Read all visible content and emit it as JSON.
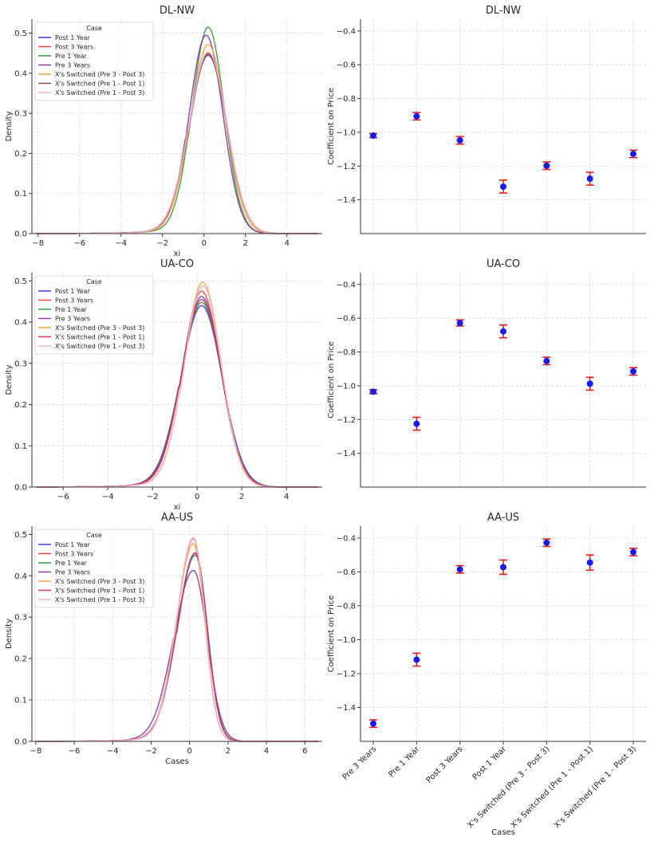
{
  "figure": {
    "cases": [
      "Pre 3 Years",
      "Pre 1 Year",
      "Post 3 Years",
      "Post 1 Year",
      "X's Switched (Pre 3 - Post 3)",
      "X's Switched (Pre 1 - Post 1)",
      "X's Switched (Pre 1 - Post 3)"
    ]
  },
  "chart_data": [
    {
      "id": "density-dl-nw",
      "type": "line",
      "title": "DL-NW",
      "xlabel": "xi",
      "ylabel": "Density",
      "xlim": [
        -8.3,
        5.7
      ],
      "ylim": [
        0,
        0.535
      ],
      "xticks": [
        -8,
        -6,
        -4,
        -2,
        0,
        2,
        4
      ],
      "yticks": [
        0.0,
        0.1,
        0.2,
        0.3,
        0.4,
        0.5
      ],
      "legend": {
        "title": "Case",
        "position": "top-left",
        "entries": [
          {
            "name": "Post 1 Year",
            "color": "#3b3bd6"
          },
          {
            "name": "Post 3 Years",
            "color": "#e8453c"
          },
          {
            "name": "Pre 1 Year",
            "color": "#3a9a3a"
          },
          {
            "name": "Pre 3 Years",
            "color": "#8a3aa6"
          },
          {
            "name": "X's Switched (Pre 3 - Post 3)",
            "color": "#f5a540"
          },
          {
            "name": "X's Switched (Pre 1 - Post 1)",
            "color": "#8b4a3a"
          },
          {
            "name": "X's Switched (Pre 1 - Post 3)",
            "color": "#f7b6d8"
          }
        ]
      },
      "series": [
        {
          "name": "Post 1 Year",
          "color": "#3b3bd6",
          "mu": 0.2,
          "peak": 0.445,
          "sigL": 0.9,
          "sigR": 0.9
        },
        {
          "name": "Post 3 Years",
          "color": "#e8453c",
          "mu": 0.2,
          "peak": 0.45,
          "sigL": 0.9,
          "sigR": 0.9
        },
        {
          "name": "Pre 1 Year",
          "color": "#3a9a3a",
          "mu": 0.2,
          "peak": 0.515,
          "sigL": 0.78,
          "sigR": 0.78
        },
        {
          "name": "Pre 3 Years",
          "color": "#8a3aa6",
          "mu": 0.1,
          "peak": 0.495,
          "sigL": 0.81,
          "sigR": 0.81
        },
        {
          "name": "X's Switched (Pre 3 - Post 3)",
          "color": "#f5a540",
          "mu": 0.2,
          "peak": 0.472,
          "sigL": 0.85,
          "sigR": 0.85
        },
        {
          "name": "X's Switched (Pre 1 - Post 1)",
          "color": "#8b4a3a",
          "mu": 0.2,
          "peak": 0.448,
          "sigL": 0.9,
          "sigR": 0.9
        },
        {
          "name": "X's Switched (Pre 1 - Post 3)",
          "color": "#f7b6d8",
          "mu": 0.2,
          "peak": 0.453,
          "sigL": 0.9,
          "sigR": 0.9
        }
      ]
    },
    {
      "id": "coef-dl-nw",
      "type": "scatter",
      "title": "DL-NW",
      "xlabel": "",
      "ylabel": "Coefficient on Price",
      "ylim": [
        -1.6,
        -0.33
      ],
      "yticks": [
        -1.4,
        -1.2,
        -1.0,
        -0.8,
        -0.6,
        -0.4
      ],
      "categories": [
        "Pre 3 Years",
        "Pre 1 Year",
        "Post 3 Years",
        "Post 1 Year",
        "X's Switched (Pre 3 - Post 3)",
        "X's Switched (Pre 1 - Post 1)",
        "X's Switched (Pre 1 - Post 3)"
      ],
      "values": [
        -1.02,
        -0.905,
        -1.048,
        -1.322,
        -1.198,
        -1.275,
        -1.128
      ],
      "errors": [
        0.012,
        0.022,
        0.022,
        0.038,
        0.022,
        0.038,
        0.022
      ],
      "point_color": "#1a1aee",
      "error_color": "#ee1a1a"
    },
    {
      "id": "density-ua-co",
      "type": "line",
      "title": "UA-CO",
      "xlabel": "xi",
      "ylabel": "Density",
      "xlim": [
        -7.4,
        5.6
      ],
      "ylim": [
        0,
        0.52
      ],
      "xticks": [
        -6,
        -4,
        -2,
        0,
        2,
        4
      ],
      "yticks": [
        0.0,
        0.1,
        0.2,
        0.3,
        0.4,
        0.5
      ],
      "legend": {
        "title": "Case",
        "position": "top-left",
        "entries": [
          {
            "name": "Post 1 Year",
            "color": "#3b3bd6"
          },
          {
            "name": "Post 3 Years",
            "color": "#e8453c"
          },
          {
            "name": "Pre 1 Year",
            "color": "#3a9a3a"
          },
          {
            "name": "Pre 3 Years",
            "color": "#8a3aa6"
          },
          {
            "name": "X's Switched (Pre 3 - Post 3)",
            "color": "#f5a540"
          },
          {
            "name": "X's Switched (Pre 1 - Post 1)",
            "color": "#c23a5a"
          },
          {
            "name": "X's Switched (Pre 1 - Post 3)",
            "color": "#f7b6d8"
          }
        ]
      },
      "series": [
        {
          "name": "Post 1 Year",
          "color": "#3b3bd6",
          "mu": 0.2,
          "peak": 0.44,
          "sigL": 0.92,
          "sigR": 0.92
        },
        {
          "name": "Post 3 Years",
          "color": "#e8453c",
          "mu": 0.2,
          "peak": 0.475,
          "sigL": 0.86,
          "sigR": 0.86
        },
        {
          "name": "Pre 1 Year",
          "color": "#3a9a3a",
          "mu": 0.2,
          "peak": 0.448,
          "sigL": 0.9,
          "sigR": 0.9
        },
        {
          "name": "Pre 3 Years",
          "color": "#8a3aa6",
          "mu": 0.2,
          "peak": 0.462,
          "sigL": 0.88,
          "sigR": 0.88
        },
        {
          "name": "X's Switched (Pre 3 - Post 3)",
          "color": "#f5a540",
          "mu": 0.25,
          "peak": 0.497,
          "sigL": 0.82,
          "sigR": 0.82
        },
        {
          "name": "X's Switched (Pre 1 - Post 1)",
          "color": "#c23a5a",
          "mu": 0.2,
          "peak": 0.455,
          "sigL": 0.89,
          "sigR": 0.89
        },
        {
          "name": "X's Switched (Pre 1 - Post 3)",
          "color": "#f7b6d8",
          "mu": 0.25,
          "peak": 0.488,
          "sigL": 0.83,
          "sigR": 0.83
        }
      ]
    },
    {
      "id": "coef-ua-co",
      "type": "scatter",
      "title": "UA-CO",
      "xlabel": "",
      "ylabel": "Coefficient on Price",
      "ylim": [
        -1.6,
        -0.33
      ],
      "yticks": [
        -1.4,
        -1.2,
        -1.0,
        -0.8,
        -0.6,
        -0.4
      ],
      "categories": [
        "Pre 3 Years",
        "Pre 1 Year",
        "Post 3 Years",
        "Post 1 Year",
        "X's Switched (Pre 3 - Post 3)",
        "X's Switched (Pre 1 - Post 1)",
        "X's Switched (Pre 1 - Post 3)"
      ],
      "values": [
        -1.035,
        -1.225,
        -0.628,
        -0.678,
        -0.853,
        -0.988,
        -0.915
      ],
      "errors": [
        0.012,
        0.038,
        0.018,
        0.038,
        0.022,
        0.038,
        0.022
      ],
      "point_color": "#1a1aee",
      "error_color": "#ee1a1a"
    },
    {
      "id": "density-aa-us",
      "type": "line",
      "title": "AA-US",
      "xlabel": "Cases",
      "ylabel": "Density",
      "xlim": [
        -8.2,
        6.9
      ],
      "ylim": [
        0,
        0.52
      ],
      "xticks": [
        -8,
        -6,
        -4,
        -2,
        0,
        2,
        4,
        6
      ],
      "yticks": [
        0.0,
        0.1,
        0.2,
        0.3,
        0.4,
        0.5
      ],
      "legend": {
        "title": "Case",
        "position": "top-left",
        "entries": [
          {
            "name": "Post 1 Year",
            "color": "#3b3bd6"
          },
          {
            "name": "Post 3 Years",
            "color": "#e8453c"
          },
          {
            "name": "Pre 1 Year",
            "color": "#3a9a3a"
          },
          {
            "name": "Pre 3 Years",
            "color": "#8a3aa6"
          },
          {
            "name": "X's Switched (Pre 3 - Post 3)",
            "color": "#f5a540"
          },
          {
            "name": "X's Switched (Pre 1 - Post 1)",
            "color": "#c23a6a"
          },
          {
            "name": "X's Switched (Pre 1 - Post 3)",
            "color": "#f7b6d8"
          }
        ]
      },
      "series": [
        {
          "name": "Post 1 Year",
          "color": "#3b3bd6",
          "mu": 0.3,
          "peak": 0.455,
          "sigL": 0.93,
          "sigR": 0.62
        },
        {
          "name": "Post 3 Years",
          "color": "#e8453c",
          "mu": 0.2,
          "peak": 0.49,
          "sigL": 0.86,
          "sigR": 0.6
        },
        {
          "name": "Pre 1 Year",
          "color": "#3a9a3a",
          "mu": 0.3,
          "peak": 0.45,
          "sigL": 0.93,
          "sigR": 0.63
        },
        {
          "name": "Pre 3 Years",
          "color": "#8a3aa6",
          "mu": 0.2,
          "peak": 0.413,
          "sigL": 1.0,
          "sigR": 0.72
        },
        {
          "name": "X's Switched (Pre 3 - Post 3)",
          "color": "#f5a540",
          "mu": 0.2,
          "peak": 0.478,
          "sigL": 0.88,
          "sigR": 0.6
        },
        {
          "name": "X's Switched (Pre 1 - Post 1)",
          "color": "#c23a6a",
          "mu": 0.3,
          "peak": 0.455,
          "sigL": 0.93,
          "sigR": 0.62
        },
        {
          "name": "X's Switched (Pre 1 - Post 3)",
          "color": "#f7b6d8",
          "mu": 0.2,
          "peak": 0.492,
          "sigL": 0.86,
          "sigR": 0.6
        }
      ]
    },
    {
      "id": "coef-aa-us",
      "type": "scatter",
      "title": "AA-US",
      "xlabel": "Cases",
      "ylabel": "Coefficient on Price",
      "ylim": [
        -1.6,
        -0.33
      ],
      "yticks": [
        -1.4,
        -1.2,
        -1.0,
        -0.8,
        -0.6,
        -0.4
      ],
      "categories": [
        "Pre 3 Years",
        "Pre 1 Year",
        "Post 3 Years",
        "Post 1 Year",
        "X's Switched (Pre 3 - Post 3)",
        "X's Switched (Pre 1 - Post 1)",
        "X's Switched (Pre 1 - Post 3)"
      ],
      "values": [
        -1.495,
        -1.118,
        -0.585,
        -0.572,
        -0.428,
        -0.545,
        -0.483
      ],
      "errors": [
        0.022,
        0.038,
        0.022,
        0.042,
        0.022,
        0.045,
        0.022
      ],
      "point_color": "#1a1aee",
      "error_color": "#ee1a1a"
    }
  ]
}
